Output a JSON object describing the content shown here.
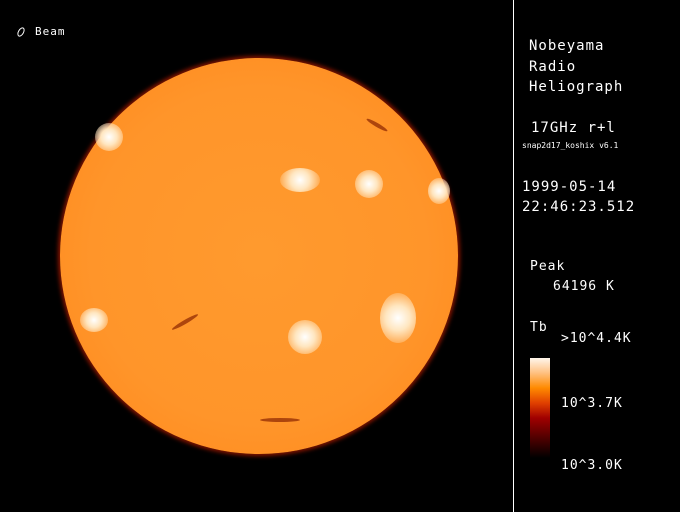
{
  "beam": {
    "icon": "beam-ellipse-icon",
    "label": "Beam"
  },
  "info": {
    "instrument": [
      "Nobeyama",
      "Radio",
      "Heliograph"
    ],
    "frequency": "17GHz r+l",
    "software": "snap2d17_koshix v6.1",
    "date": "1999-05-14",
    "time": "22:46:23.512",
    "peak_label": "Peak",
    "peak_value": "64196 K"
  },
  "colorbar": {
    "title": "Tb",
    "max_label": ">10^4.4K",
    "mid_label": "10^3.7K",
    "min_label": "10^3.0K",
    "colors": [
      "#fff6ec",
      "#ff8a00",
      "#a00000",
      "#000000"
    ]
  }
}
